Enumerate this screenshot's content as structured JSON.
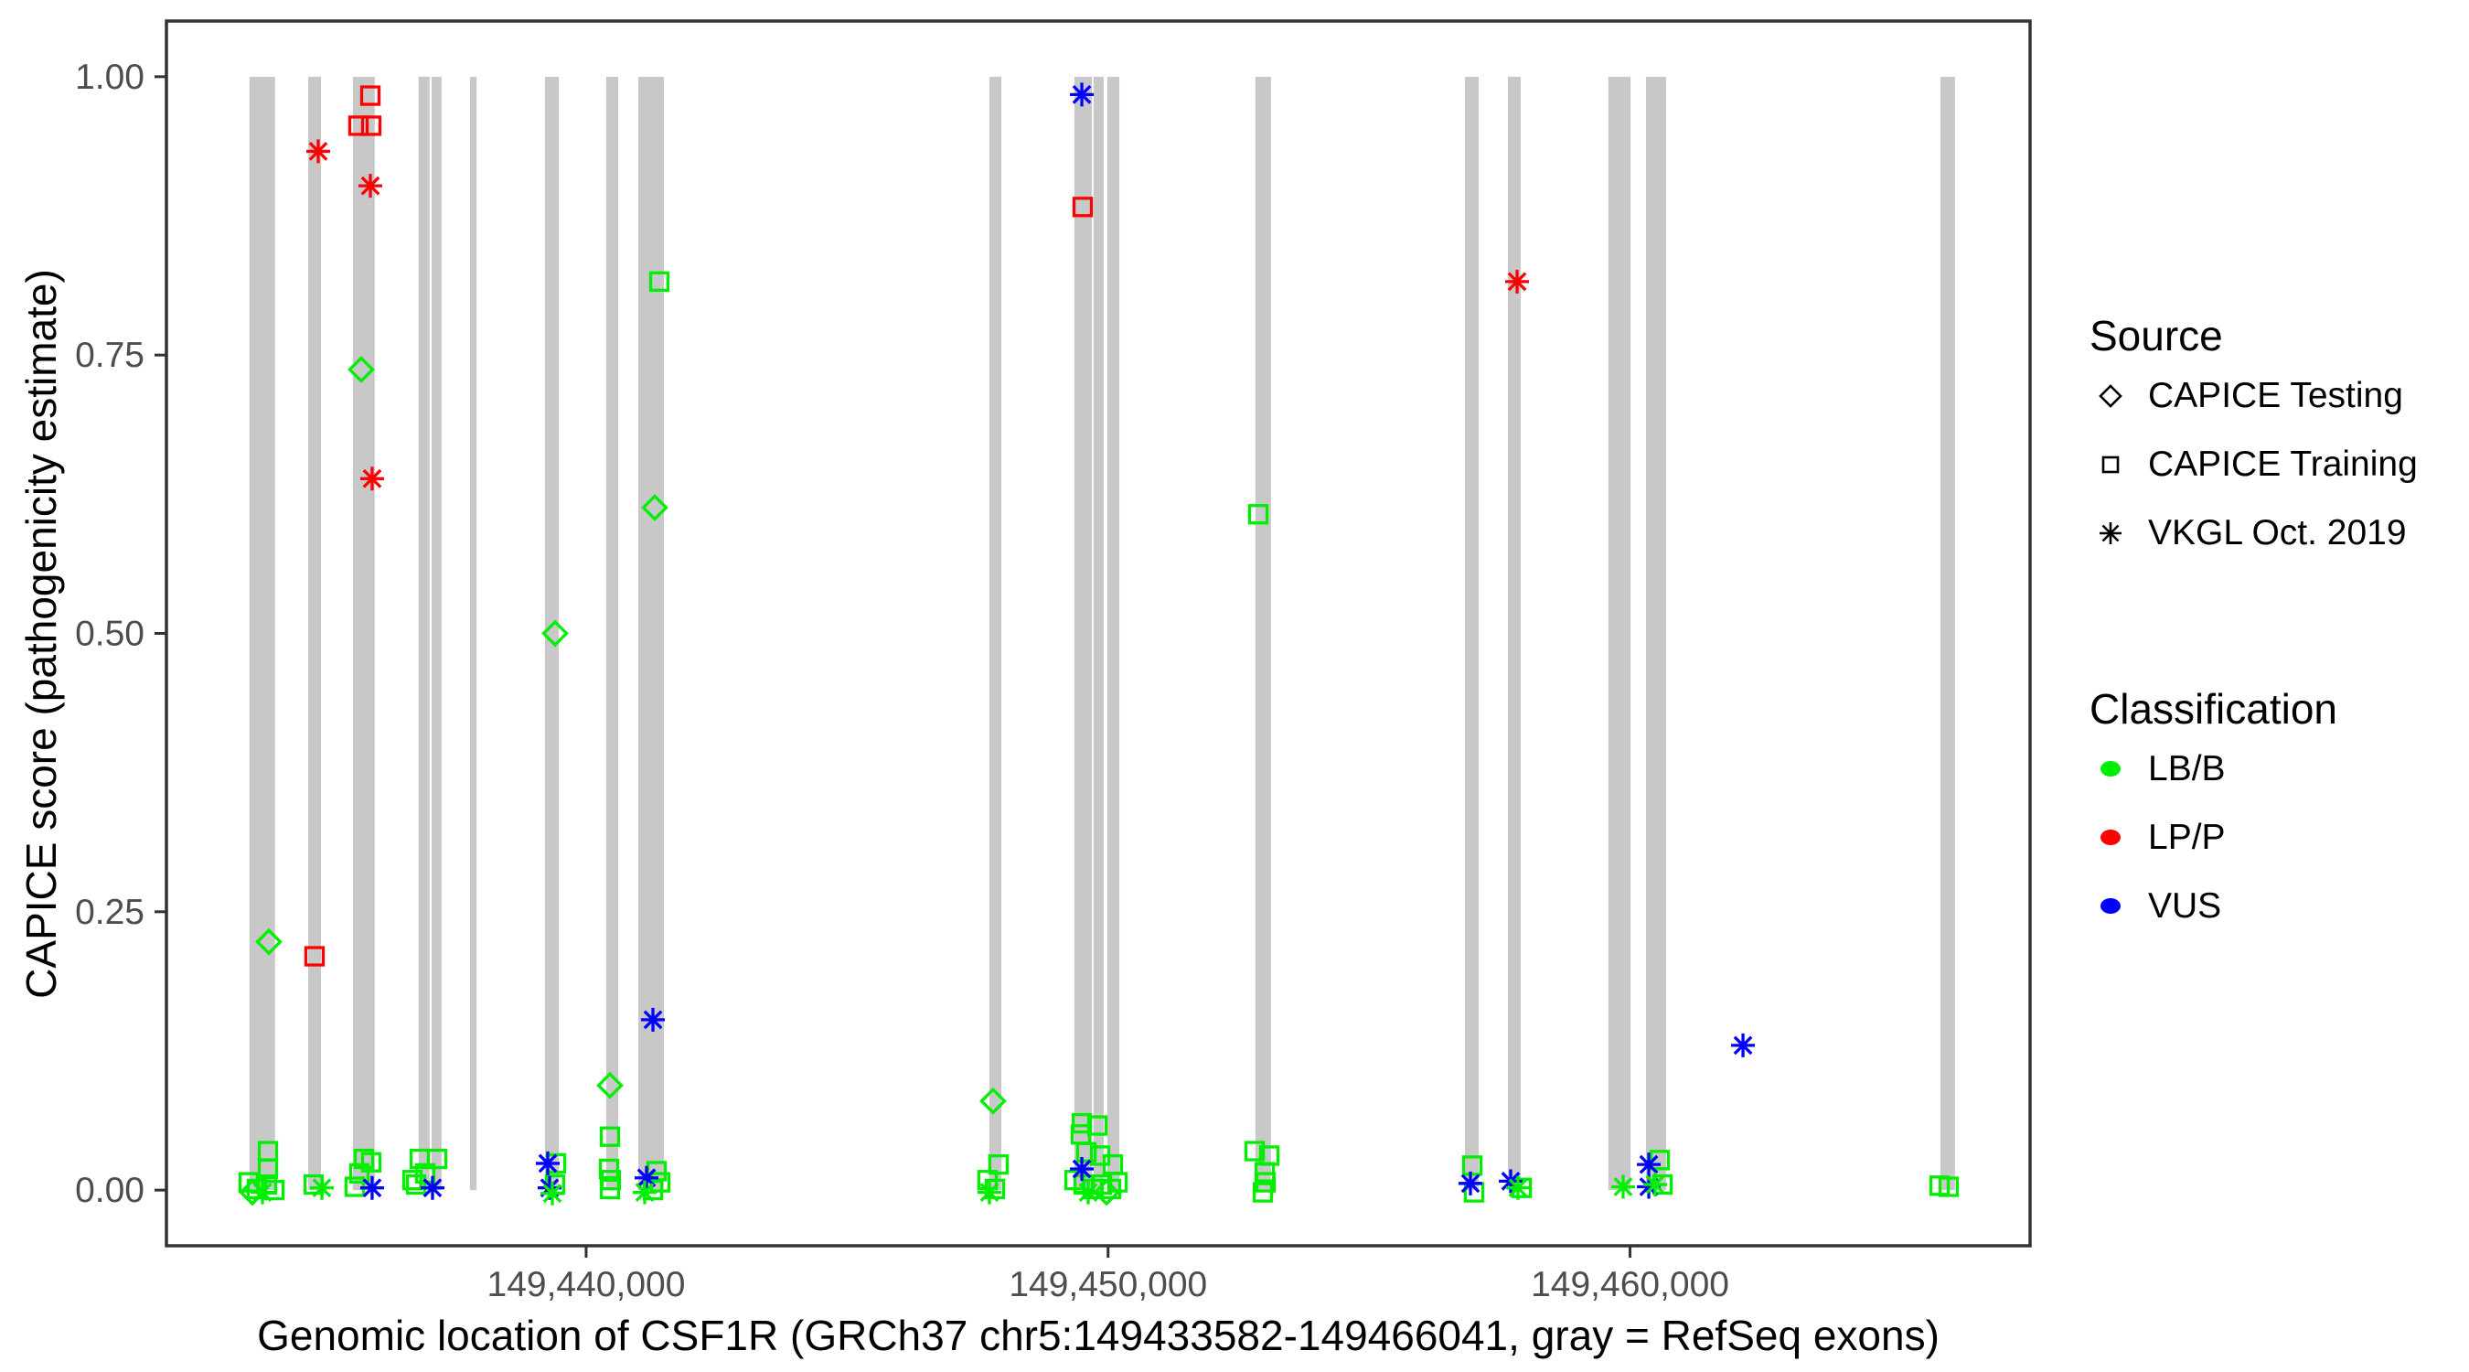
{
  "legend": {
    "source": {
      "title": "Source",
      "items": [
        {
          "label": "CAPICE Testing",
          "shape": "diamond"
        },
        {
          "label": "CAPICE Training",
          "shape": "square"
        },
        {
          "label": "VKGL Oct. 2019",
          "shape": "asterisk"
        }
      ]
    },
    "classification": {
      "title": "Classification",
      "items": [
        {
          "label": "LB/B",
          "color": "#00EE00"
        },
        {
          "label": "LP/P",
          "color": "#FF0000"
        },
        {
          "label": "VUS",
          "color": "#0000FF"
        }
      ]
    }
  },
  "colors": {
    "exon_bar": "#C8C8C8",
    "panel_border": "#333333",
    "tick": "#333333",
    "tick_label": "#4D4D4D",
    "axis_title": "#000000",
    "background": "#FFFFFF"
  },
  "chart_data": {
    "type": "scatter",
    "title": "",
    "xlabel": "Genomic location of CSF1R (GRCh37 chr5:149433582-149466041, gray = RefSeq exons)",
    "ylabel": "CAPICE score (pathogenicity estimate)",
    "xlim": [
      149431959,
      149467664
    ],
    "ylim": [
      -0.05,
      1.05
    ],
    "grid": false,
    "legend_position": "right",
    "x_ticks": [
      {
        "value": 149440000,
        "label": "149,440,000"
      },
      {
        "value": 149450000,
        "label": "149,450,000"
      },
      {
        "value": 149460000,
        "label": "149,460,000"
      }
    ],
    "y_ticks": [
      {
        "value": 0.0,
        "label": "0.00"
      },
      {
        "value": 0.25,
        "label": "0.25"
      },
      {
        "value": 0.5,
        "label": "0.50"
      },
      {
        "value": 0.75,
        "label": "0.75"
      },
      {
        "value": 1.0,
        "label": "1.00"
      }
    ],
    "classification_colors": {
      "LB/B": "#00EE00",
      "LP/P": "#FF0000",
      "VUS": "#0000FF"
    },
    "exon_bars": [
      [
        149433550,
        149434040
      ],
      [
        149434675,
        149434920
      ],
      [
        149435530,
        149435950
      ],
      [
        149436790,
        149437000
      ],
      [
        149437040,
        149437230
      ],
      [
        149437775,
        149437900
      ],
      [
        149439210,
        149439475
      ],
      [
        149440385,
        149440615
      ],
      [
        149441000,
        149441490
      ],
      [
        149447725,
        149447955
      ],
      [
        149449355,
        149449690
      ],
      [
        149449720,
        149449915
      ],
      [
        149449985,
        149450215
      ],
      [
        149452825,
        149453120
      ],
      [
        149456835,
        149457100
      ],
      [
        149457660,
        149457905
      ],
      [
        149459585,
        149460010
      ],
      [
        149460305,
        149460690
      ],
      [
        149465945,
        149466225
      ]
    ],
    "series": [
      {
        "name": "CAPICE Training",
        "shape": "square",
        "points": [
          [
            149435866,
            0.983,
            "LP/P"
          ],
          [
            149435638,
            0.956,
            "LP/P"
          ],
          [
            149435883,
            0.956,
            "LP/P"
          ],
          [
            149449514,
            0.883,
            "LP/P"
          ],
          [
            149434797,
            0.21,
            "LP/P"
          ],
          [
            149441402,
            0.816,
            "LB/B"
          ],
          [
            149452878,
            0.607,
            "LB/B"
          ],
          [
            149433904,
            0.035,
            "LB/B"
          ],
          [
            149433904,
            0.019,
            "LB/B"
          ],
          [
            149433536,
            0.007,
            "LB/B"
          ],
          [
            149433693,
            0.001,
            "LB/B"
          ],
          [
            149433886,
            0.005,
            "LB/B"
          ],
          [
            149434026,
            0.0,
            "LB/B"
          ],
          [
            149434780,
            0.005,
            "LB/B"
          ],
          [
            149435743,
            0.028,
            "LB/B"
          ],
          [
            149435883,
            0.025,
            "LB/B"
          ],
          [
            149435655,
            0.015,
            "LB/B"
          ],
          [
            149435568,
            0.003,
            "LB/B"
          ],
          [
            149436812,
            0.028,
            "LB/B"
          ],
          [
            149437145,
            0.028,
            "LB/B"
          ],
          [
            149436917,
            0.015,
            "LB/B"
          ],
          [
            149436672,
            0.009,
            "LB/B"
          ],
          [
            149436742,
            0.005,
            "LB/B"
          ],
          [
            149439423,
            0.024,
            "LB/B"
          ],
          [
            149439405,
            0.005,
            "LB/B"
          ],
          [
            149440456,
            0.048,
            "LB/B"
          ],
          [
            149440438,
            0.019,
            "LB/B"
          ],
          [
            149440473,
            0.009,
            "LB/B"
          ],
          [
            149440456,
            0.001,
            "LB/B"
          ],
          [
            149441350,
            0.017,
            "LB/B"
          ],
          [
            149441420,
            0.007,
            "LB/B"
          ],
          [
            149441280,
            0.0,
            "LB/B"
          ],
          [
            149447901,
            0.023,
            "LB/B"
          ],
          [
            149447691,
            0.009,
            "LB/B"
          ],
          [
            149447831,
            0.001,
            "LB/B"
          ],
          [
            149449497,
            0.06,
            "LB/B"
          ],
          [
            149449795,
            0.058,
            "LB/B"
          ],
          [
            149449479,
            0.05,
            "LB/B"
          ],
          [
            149449584,
            0.034,
            "LB/B"
          ],
          [
            149449847,
            0.031,
            "LB/B"
          ],
          [
            149450092,
            0.023,
            "LB/B"
          ],
          [
            149449356,
            0.009,
            "LB/B"
          ],
          [
            149449532,
            0.005,
            "LB/B"
          ],
          [
            149449707,
            0.001,
            "LB/B"
          ],
          [
            149449882,
            0.005,
            "LB/B"
          ],
          [
            149450057,
            0.001,
            "LB/B"
          ],
          [
            149450180,
            0.007,
            "LB/B"
          ],
          [
            149452808,
            0.035,
            "LB/B"
          ],
          [
            149453088,
            0.031,
            "LB/B"
          ],
          [
            149453001,
            0.016,
            "LB/B"
          ],
          [
            149453018,
            0.007,
            "LB/B"
          ],
          [
            149452966,
            -0.002,
            "LB/B"
          ],
          [
            149456977,
            0.022,
            "LB/B"
          ],
          [
            149457012,
            -0.002,
            "LB/B"
          ],
          [
            149457923,
            0.002,
            "LB/B"
          ],
          [
            149460569,
            0.027,
            "LB/B"
          ],
          [
            149460621,
            0.005,
            "LB/B"
          ],
          [
            149465930,
            0.004,
            "LB/B"
          ],
          [
            149466105,
            0.003,
            "LB/B"
          ]
        ]
      },
      {
        "name": "CAPICE Testing",
        "shape": "diamond",
        "points": [
          [
            149433921,
            0.223,
            "LB/B"
          ],
          [
            149435690,
            0.737,
            "LB/B"
          ],
          [
            149439405,
            0.5,
            "LB/B"
          ],
          [
            149441315,
            0.613,
            "LB/B"
          ],
          [
            149440456,
            0.094,
            "LB/B"
          ],
          [
            149447796,
            0.08,
            "LB/B"
          ],
          [
            149433606,
            -0.002,
            "LB/B"
          ],
          [
            149449970,
            -0.002,
            "LB/B"
          ]
        ]
      },
      {
        "name": "VKGL Oct. 2019",
        "shape": "asterisk",
        "points": [
          [
            149434867,
            0.933,
            "LP/P"
          ],
          [
            149435866,
            0.902,
            "LP/P"
          ],
          [
            149435900,
            0.639,
            "LP/P"
          ],
          [
            149457836,
            0.816,
            "LP/P"
          ],
          [
            149449497,
            0.984,
            "VUS"
          ],
          [
            149441280,
            0.153,
            "VUS"
          ],
          [
            149462164,
            0.13,
            "VUS"
          ],
          [
            149435900,
            0.002,
            "VUS"
          ],
          [
            149437057,
            0.002,
            "VUS"
          ],
          [
            149439265,
            0.024,
            "VUS"
          ],
          [
            149439300,
            0.002,
            "VUS"
          ],
          [
            149441157,
            0.011,
            "VUS"
          ],
          [
            149449497,
            0.019,
            "VUS"
          ],
          [
            149456942,
            0.006,
            "VUS"
          ],
          [
            149457713,
            0.008,
            "VUS"
          ],
          [
            149460359,
            0.023,
            "VUS"
          ],
          [
            149460359,
            0.003,
            "VUS"
          ],
          [
            149433799,
            -0.002,
            "LB/B"
          ],
          [
            149434937,
            0.002,
            "LB/B"
          ],
          [
            149439352,
            -0.003,
            "LB/B"
          ],
          [
            149441122,
            -0.002,
            "LB/B"
          ],
          [
            149447726,
            -0.002,
            "LB/B"
          ],
          [
            149449619,
            -0.002,
            "LB/B"
          ],
          [
            149457853,
            0.002,
            "LB/B"
          ],
          [
            149459868,
            0.003,
            "LB/B"
          ],
          [
            149460481,
            0.005,
            "LB/B"
          ]
        ]
      }
    ]
  }
}
